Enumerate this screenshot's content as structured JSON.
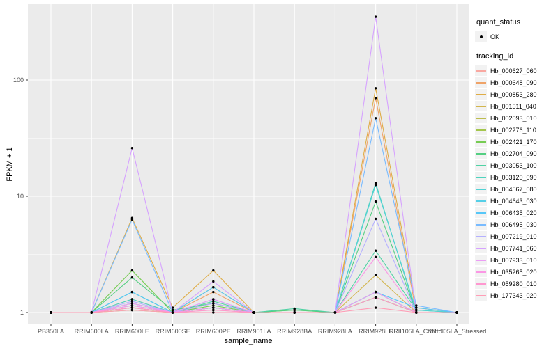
{
  "chart_data": {
    "type": "line",
    "title": "",
    "xlabel": "sample_name",
    "ylabel": "FPKM + 1",
    "y_scale": "log10",
    "y_ticks": [
      1,
      10,
      100
    ],
    "y_minor_ticks": [
      3.1623,
      31.623,
      316.23
    ],
    "ylim": [
      0.9,
      450
    ],
    "grid": "white major+minor on grey panel",
    "legend_position": "right",
    "categories": [
      "PB350LA",
      "RRIM600LA",
      "RRIM600LE",
      "RRIM600SE",
      "RRIM600PE",
      "RRIM901LA",
      "RRIM928BA",
      "RRIM928LA",
      "RRIM928LE",
      "RRII105LA_Control",
      "RRII105LA_Stressed"
    ],
    "series": [
      {
        "name": "Hb_000627_060",
        "color": "#F9A8A1",
        "values": [
          1,
          1,
          1.3,
          1,
          1.05,
          1,
          1,
          1,
          1.5,
          1,
          1
        ]
      },
      {
        "name": "Hb_000648_090",
        "color": "#EFA368",
        "values": [
          1,
          1,
          1.1,
          1,
          1.5,
          1,
          1,
          1,
          70,
          1,
          1
        ]
      },
      {
        "name": "Hb_000853_280",
        "color": "#DFAC45",
        "values": [
          1,
          1,
          6.5,
          1.1,
          2.3,
          1,
          1,
          1,
          85,
          1.1,
          1
        ]
      },
      {
        "name": "Hb_001511_040",
        "color": "#D2B54D",
        "values": [
          1,
          1,
          1.2,
          1,
          1.2,
          1,
          1,
          1,
          2.1,
          1,
          1
        ]
      },
      {
        "name": "Hb_002093_010",
        "color": "#BDBD4E",
        "values": [
          1,
          1,
          1.1,
          1,
          1.65,
          1,
          1,
          1,
          1.5,
          1,
          1
        ]
      },
      {
        "name": "Hb_002276_110",
        "color": "#A4C64D",
        "values": [
          1,
          1,
          1.05,
          1,
          1.1,
          1,
          1,
          1,
          1.35,
          1,
          1
        ]
      },
      {
        "name": "Hb_002421_170",
        "color": "#77CC53",
        "values": [
          1,
          1,
          2.3,
          1,
          1.15,
          1,
          1.05,
          1,
          1.35,
          1,
          1
        ]
      },
      {
        "name": "Hb_002704_090",
        "color": "#54CF82",
        "values": [
          1,
          1,
          2.0,
          1.05,
          1.2,
          1,
          1.05,
          1,
          9,
          1,
          1
        ]
      },
      {
        "name": "Hb_003053_100",
        "color": "#4FD2A4",
        "values": [
          1,
          1,
          1.5,
          1,
          1.25,
          1,
          1.08,
          1,
          3.4,
          1.05,
          1
        ]
      },
      {
        "name": "Hb_003120_090",
        "color": "#4ED3BE",
        "values": [
          1,
          1,
          1.3,
          1,
          1.1,
          1,
          1,
          1,
          13,
          1,
          1
        ]
      },
      {
        "name": "Hb_004567_080",
        "color": "#52D2D4",
        "values": [
          1,
          1,
          1.2,
          1,
          1.1,
          1,
          1,
          1,
          12.5,
          1.05,
          1
        ]
      },
      {
        "name": "Hb_004643_030",
        "color": "#55CFE7",
        "values": [
          1,
          1,
          1.15,
          1,
          1.1,
          1,
          1,
          1,
          1.5,
          1,
          1
        ]
      },
      {
        "name": "Hb_006435_020",
        "color": "#57C7F8",
        "values": [
          1,
          1,
          1.5,
          1,
          1.65,
          1,
          1,
          1,
          1.5,
          1.1,
          1
        ]
      },
      {
        "name": "Hb_006495_030",
        "color": "#79BBFF",
        "values": [
          1,
          1,
          6.3,
          1,
          1.3,
          1,
          1,
          1,
          47,
          1.15,
          1
        ]
      },
      {
        "name": "Hb_007219_010",
        "color": "#B4B0FF",
        "values": [
          1,
          1,
          1.25,
          1,
          1.2,
          1,
          1,
          1,
          6.4,
          1,
          1
        ]
      },
      {
        "name": "Hb_007741_060",
        "color": "#D6A2FF",
        "values": [
          1,
          1,
          26,
          1,
          1.85,
          1,
          1,
          1,
          350,
          1,
          1
        ]
      },
      {
        "name": "Hb_007933_010",
        "color": "#EC9DF5",
        "values": [
          1,
          1,
          1.2,
          1,
          1.3,
          1,
          1,
          1,
          1.5,
          1,
          1
        ]
      },
      {
        "name": "Hb_035265_020",
        "color": "#FB97E5",
        "values": [
          1,
          1,
          1.15,
          1,
          1.1,
          1,
          1,
          1,
          3.0,
          1,
          1
        ]
      },
      {
        "name": "Hb_059280_010",
        "color": "#FF97D0",
        "values": [
          1,
          1,
          1.1,
          1,
          1.05,
          1,
          1,
          1,
          1.35,
          1,
          1
        ]
      },
      {
        "name": "Hb_177343_020",
        "color": "#FF9DB6",
        "values": [
          1,
          1,
          1.05,
          1,
          1,
          1,
          1,
          1,
          1.1,
          1,
          1
        ]
      }
    ]
  },
  "legend": {
    "quant_status_title": "quant_status",
    "quant_status_items": [
      {
        "label": "OK",
        "marker": "black-point"
      }
    ],
    "tracking_id_title": "tracking_id"
  },
  "colors": {
    "panel_bg": "#EBEBEB",
    "grid": "#FFFFFF",
    "axis_text": "#4D4D4D",
    "tick_mark": "#333333",
    "point": "#000000",
    "legend_key_bg": "#F2F2F2"
  }
}
